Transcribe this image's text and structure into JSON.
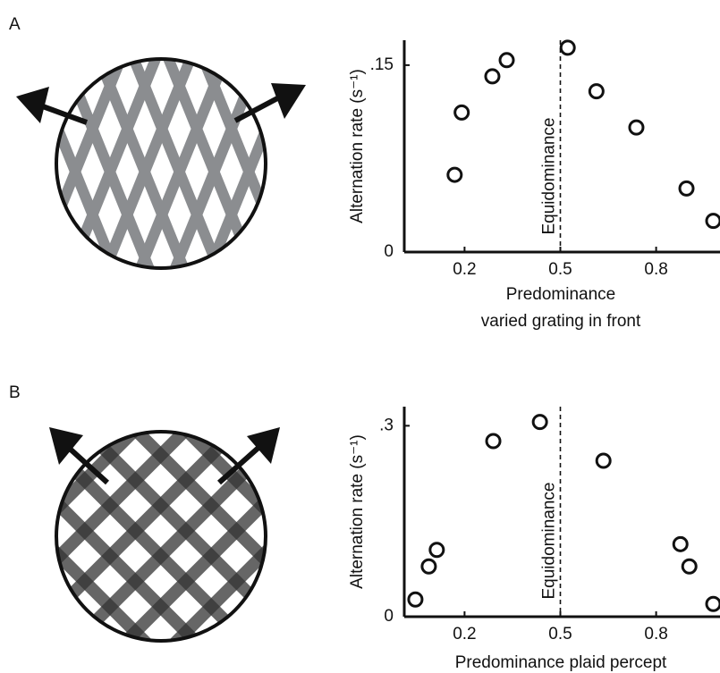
{
  "chart_data": [
    {
      "type": "scatter",
      "panel": "A",
      "ylabel": "Alternation rate (s⁻¹)",
      "xlabel": [
        "Predominance",
        "varied grating in front"
      ],
      "reference_line": {
        "x": 0.5,
        "label": "Equidominance"
      },
      "xlim": [
        0,
        1
      ],
      "ylim": [
        0,
        0.17
      ],
      "xticks": [
        0.2,
        0.5,
        0.8
      ],
      "yticks": [
        0,
        {
          "value": 0.15,
          "label": ".15"
        }
      ],
      "x": [
        0.169,
        0.191,
        0.287,
        0.332,
        0.523,
        0.613,
        0.738,
        0.895,
        0.979
      ],
      "values": [
        0.062,
        0.112,
        0.141,
        0.154,
        0.164,
        0.129,
        0.1,
        0.051,
        0.025
      ]
    },
    {
      "type": "scatter",
      "panel": "B",
      "ylabel": "Alternation rate (s⁻¹)",
      "xlabel": [
        "Predominance plaid percept"
      ],
      "reference_line": {
        "x": 0.5,
        "label": "Equidominance"
      },
      "xlim": [
        0,
        1
      ],
      "ylim": [
        0,
        0.33
      ],
      "xticks": [
        0.2,
        0.5,
        0.8
      ],
      "yticks": [
        0,
        {
          "value": 0.3,
          "label": ".3"
        }
      ],
      "x": [
        0.046,
        0.088,
        0.113,
        0.29,
        0.436,
        0.635,
        0.876,
        0.904,
        0.979
      ],
      "values": [
        0.027,
        0.079,
        0.105,
        0.276,
        0.306,
        0.245,
        0.114,
        0.079,
        0.02
      ]
    }
  ]
}
